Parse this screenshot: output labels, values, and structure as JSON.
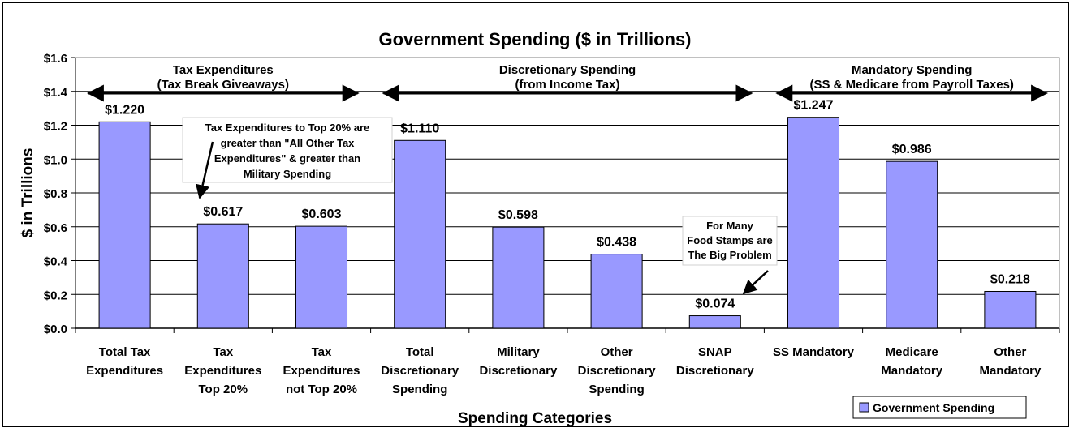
{
  "chart_data": {
    "type": "bar",
    "title": "Government Spending ($ in Trillions)",
    "xlabel": "Spending Categories",
    "ylabel": "$ in Trillions",
    "ylim": [
      0,
      1.6
    ],
    "yticks": [
      "$0.0",
      "$0.2",
      "$0.4",
      "$0.6",
      "$0.8",
      "$1.0",
      "$1.2",
      "$1.4",
      "$1.6"
    ],
    "categories": [
      [
        "Total Tax",
        "Expenditures"
      ],
      [
        "Tax",
        "Expenditures",
        "Top 20%"
      ],
      [
        "Tax",
        "Expenditures",
        "not Top 20%"
      ],
      [
        "Total",
        "Discretionary",
        "Spending"
      ],
      [
        "Military",
        "Discretionary"
      ],
      [
        "Other",
        "Discretionary",
        "Spending"
      ],
      [
        "SNAP",
        "Discretionary"
      ],
      [
        "SS Mandatory"
      ],
      [
        "Medicare",
        "Mandatory"
      ],
      [
        "Other",
        "Mandatory"
      ]
    ],
    "series": [
      {
        "name": "Government Spending",
        "values": [
          1.22,
          0.617,
          0.603,
          1.11,
          0.598,
          0.438,
          0.074,
          1.247,
          0.986,
          0.218
        ],
        "labels": [
          "$1.220",
          "$0.617",
          "$0.603",
          "$1.110",
          "$0.598",
          "$0.438",
          "$0.074",
          "$1.247",
          "$0.986",
          "$0.218"
        ]
      }
    ],
    "bar_color": "#9999ff",
    "grid": true,
    "legend": "bottom-right",
    "groups": [
      {
        "title": [
          "Tax Expenditures",
          "(Tax Break Giveaways)"
        ],
        "from": 0,
        "to": 2
      },
      {
        "title": [
          "Discretionary Spending",
          "(from Income Tax)"
        ],
        "from": 3,
        "to": 6
      },
      {
        "title": [
          "Mandatory Spending",
          "(SS & Medicare from Payroll Taxes)"
        ],
        "from": 7,
        "to": 9
      }
    ],
    "annotations": [
      {
        "text": [
          "Tax Expenditures to Top 20% are",
          "greater than \"All Other Tax",
          "Expenditures\" & greater than",
          "Military Spending"
        ],
        "target": 1
      },
      {
        "text": [
          "For Many",
          "Food Stamps are",
          "The Big Problem"
        ],
        "target": 6
      }
    ]
  }
}
